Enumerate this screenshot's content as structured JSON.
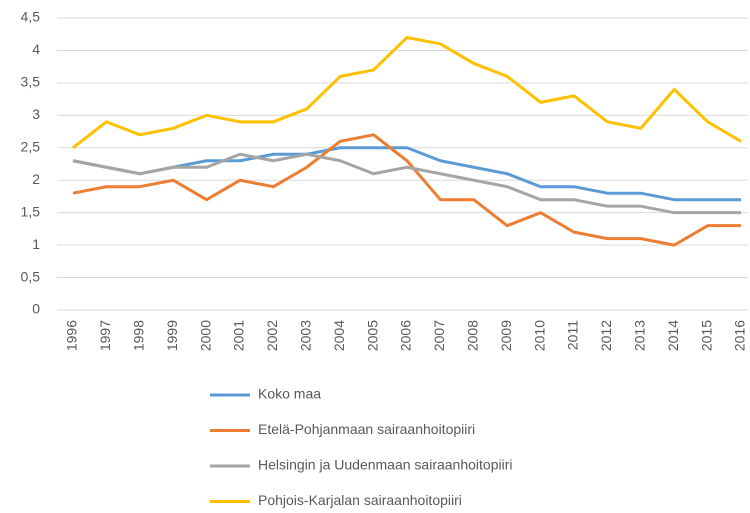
{
  "chart_data": {
    "type": "line",
    "categories": [
      "1996",
      "1997",
      "1998",
      "1999",
      "2000",
      "2001",
      "2002",
      "2003",
      "2004",
      "2005",
      "2006",
      "2007",
      "2008",
      "2009",
      "2010",
      "2011",
      "2012",
      "2013",
      "2014",
      "2015",
      "2016"
    ],
    "series": [
      {
        "name": "Koko maa",
        "color": "#5b9bd5",
        "values": [
          2.3,
          2.2,
          2.1,
          2.2,
          2.3,
          2.3,
          2.4,
          2.4,
          2.5,
          2.5,
          2.5,
          2.3,
          2.2,
          2.1,
          1.9,
          1.9,
          1.8,
          1.8,
          1.7,
          1.7,
          1.7
        ]
      },
      {
        "name": "Etelä-Pohjanmaan sairaanhoitopiiri",
        "color": "#ed7d31",
        "values": [
          1.8,
          1.9,
          1.9,
          2.0,
          1.7,
          2.0,
          1.9,
          2.2,
          2.6,
          2.7,
          2.3,
          1.7,
          1.7,
          1.3,
          1.5,
          1.2,
          1.1,
          1.1,
          1.0,
          1.3,
          1.3
        ]
      },
      {
        "name": "Helsingin ja Uudenmaan sairaanhoitopiiri",
        "color": "#a5a5a5",
        "values": [
          2.3,
          2.2,
          2.1,
          2.2,
          2.2,
          2.4,
          2.3,
          2.4,
          2.3,
          2.1,
          2.2,
          2.1,
          2.0,
          1.9,
          1.7,
          1.7,
          1.6,
          1.6,
          1.5,
          1.5,
          1.5
        ]
      },
      {
        "name": "Pohjois-Karjalan sairaanhoitopiiri",
        "color": "#ffc000",
        "values": [
          2.5,
          2.9,
          2.7,
          2.8,
          3.0,
          2.9,
          2.9,
          3.1,
          3.6,
          3.7,
          4.2,
          4.1,
          3.8,
          3.6,
          3.2,
          3.3,
          2.9,
          2.8,
          3.4,
          2.9,
          2.6
        ]
      }
    ],
    "ylim": [
      0,
      4.5
    ],
    "yticks": [
      0,
      {
        "value": 0.5,
        "label": "0,5"
      },
      1,
      {
        "value": 1.5,
        "label": "1,5"
      },
      2,
      {
        "value": 2.5,
        "label": "2,5"
      },
      3,
      {
        "value": 3.5,
        "label": "3,5"
      },
      4,
      {
        "value": 4.5,
        "label": "4,5"
      }
    ],
    "grid": true,
    "legend": "bottom"
  }
}
